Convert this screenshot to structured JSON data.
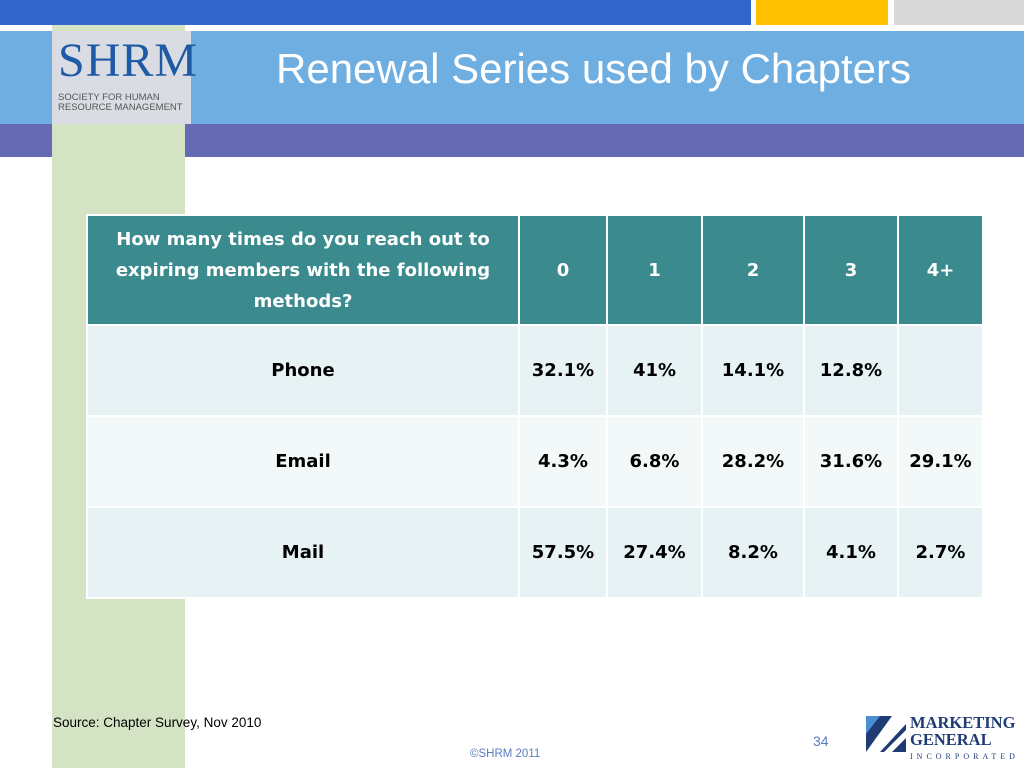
{
  "header": {
    "title": "Renewal Series used by Chapters"
  },
  "logo": {
    "main": "SHRM",
    "sub": "Society for Human Resource Management"
  },
  "table": {
    "question": "How many times do you reach out to expiring members with the following methods?",
    "columns": [
      "0",
      "1",
      "2",
      "3",
      "4+"
    ],
    "rows": [
      {
        "label": "Phone",
        "values": [
          "32.1%",
          "41%",
          "14.1%",
          "12.8%",
          ""
        ]
      },
      {
        "label": "Email",
        "values": [
          "4.3%",
          "6.8%",
          "28.2%",
          "31.6%",
          "29.1%"
        ]
      },
      {
        "label": "Mail",
        "values": [
          "57.5%",
          "27.4%",
          "8.2%",
          "4.1%",
          "2.7%"
        ]
      }
    ]
  },
  "footer": {
    "source": "Source: Chapter Survey, Nov 2010",
    "page_number": "34",
    "copyright": "©SHRM 2011",
    "partner_name_line1": "MARKETING",
    "partner_name_line2": "GENERAL",
    "partner_inc": "INCORPORATED"
  },
  "colors": {
    "top_bar_blue": "#3366cc",
    "top_bar_gold": "#ffc000",
    "header_blue": "#6faee0",
    "header_purple": "#6669b3",
    "table_header": "#3a8a8e",
    "table_row": "#e6f2f3"
  }
}
